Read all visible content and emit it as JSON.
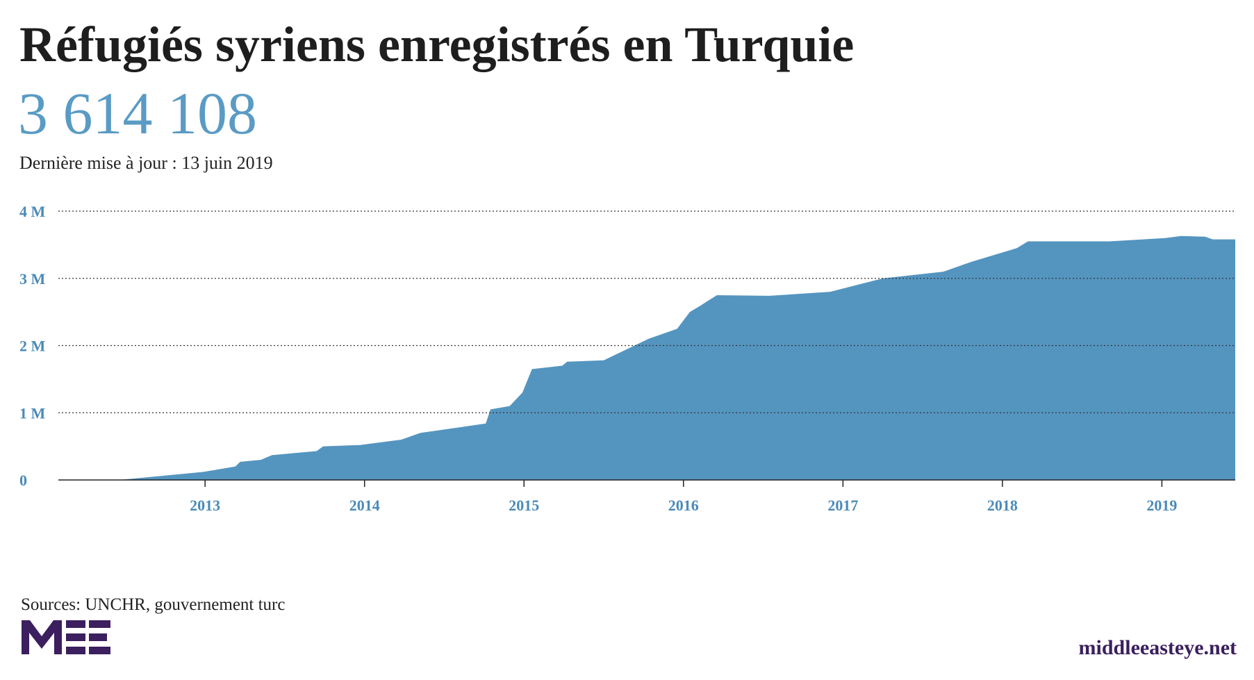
{
  "chart_data": {
    "type": "area",
    "title": "Réfugiés syriens enregistrés en Turquie",
    "headline": "3 614 108",
    "subtitle": "Dernière mise à jour : 13 juin 2019",
    "source": "Sources: UNCHR, gouvernement turc",
    "site": "middleeasteye.net",
    "color": "#5495c0",
    "grid": true,
    "x": [
      2012.08,
      2012.46,
      2012.99,
      2013.19,
      2013.22,
      2013.35,
      2013.42,
      2013.7,
      2013.74,
      2013.97,
      2014.23,
      2014.35,
      2014.76,
      2014.79,
      2014.91,
      2014.99,
      2015.05,
      2015.24,
      2015.27,
      2015.5,
      2015.78,
      2015.96,
      2016.04,
      2016.11,
      2016.21,
      2016.54,
      2016.92,
      2017.25,
      2017.63,
      2017.81,
      2018.09,
      2018.16,
      2018.67,
      2019.02,
      2019.12,
      2019.27,
      2019.32,
      2019.46
    ],
    "values": [
      0,
      0,
      120000,
      200000,
      270000,
      300000,
      370000,
      430000,
      500000,
      520000,
      600000,
      700000,
      840000,
      1050000,
      1100000,
      1300000,
      1650000,
      1700000,
      1760000,
      1780000,
      2100000,
      2250000,
      2500000,
      2600000,
      2750000,
      2740000,
      2800000,
      3000000,
      3100000,
      3250000,
      3450000,
      3550000,
      3550000,
      3600000,
      3630000,
      3620000,
      3580000,
      3580000
    ],
    "xlim": [
      2012.08,
      2019.46
    ],
    "xticks": [
      2013,
      2014,
      2015,
      2016,
      2017,
      2018,
      2019
    ],
    "ylim": [
      0,
      4000000
    ],
    "yticks": [
      {
        "value": 0,
        "label": "0"
      },
      {
        "value": 1000000,
        "label": "1 M"
      },
      {
        "value": 2000000,
        "label": "2 M"
      },
      {
        "value": 3000000,
        "label": "3 M"
      },
      {
        "value": 4000000,
        "label": "4 M"
      }
    ]
  }
}
